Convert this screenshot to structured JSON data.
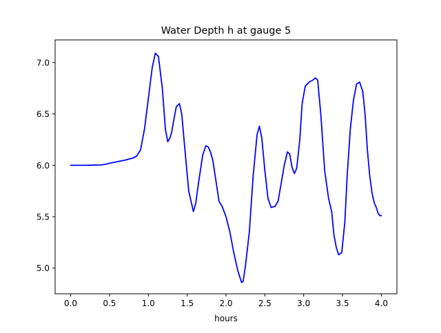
{
  "chart_data": {
    "type": "line",
    "title": "Water Depth h at gauge 5",
    "xlabel": "hours",
    "ylabel": "",
    "xlim": [
      -0.2,
      4.2
    ],
    "ylim": [
      4.75,
      7.22
    ],
    "grid": false,
    "legend": "none",
    "x_ticks": [
      0.0,
      0.5,
      1.0,
      1.5,
      2.0,
      2.5,
      3.0,
      3.5,
      4.0
    ],
    "x_tick_labels": [
      "0.0",
      "0.5",
      "1.0",
      "1.5",
      "2.0",
      "2.5",
      "3.0",
      "3.5",
      "4.0"
    ],
    "y_ticks": [
      5.0,
      5.5,
      6.0,
      6.5,
      7.0
    ],
    "y_tick_labels": [
      "5.0",
      "5.5",
      "6.0",
      "6.5",
      "7.0"
    ],
    "series": [
      {
        "color": "#0000ff",
        "x": [
          0.0,
          0.2,
          0.4,
          0.45,
          0.5,
          0.6,
          0.7,
          0.8,
          0.85,
          0.9,
          0.95,
          1.0,
          1.05,
          1.09,
          1.13,
          1.18,
          1.22,
          1.25,
          1.28,
          1.3,
          1.33,
          1.36,
          1.4,
          1.43,
          1.47,
          1.52,
          1.58,
          1.61,
          1.65,
          1.7,
          1.74,
          1.77,
          1.8,
          1.83,
          1.87,
          1.91,
          1.95,
          2.0,
          2.05,
          2.1,
          2.15,
          2.2,
          2.22,
          2.25,
          2.3,
          2.35,
          2.4,
          2.43,
          2.46,
          2.5,
          2.54,
          2.58,
          2.63,
          2.67,
          2.7,
          2.75,
          2.79,
          2.82,
          2.85,
          2.88,
          2.91,
          2.95,
          2.98,
          3.02,
          3.07,
          3.12,
          3.15,
          3.18,
          3.22,
          3.27,
          3.32,
          3.36,
          3.39,
          3.42,
          3.45,
          3.49,
          3.53,
          3.56,
          3.6,
          3.64,
          3.68,
          3.72,
          3.76,
          3.79,
          3.82,
          3.85,
          3.88,
          3.91,
          3.93,
          3.96,
          3.98,
          4.0
        ],
        "y": [
          6.0,
          6.0,
          6.004,
          6.01,
          6.02,
          6.035,
          6.05,
          6.07,
          6.09,
          6.15,
          6.35,
          6.65,
          6.95,
          7.09,
          7.06,
          6.75,
          6.35,
          6.23,
          6.27,
          6.32,
          6.45,
          6.57,
          6.6,
          6.5,
          6.16,
          5.75,
          5.55,
          5.63,
          5.85,
          6.1,
          6.19,
          6.18,
          6.13,
          6.05,
          5.85,
          5.65,
          5.6,
          5.5,
          5.35,
          5.15,
          4.98,
          4.86,
          4.87,
          5.02,
          5.35,
          5.9,
          6.3,
          6.38,
          6.27,
          5.95,
          5.68,
          5.59,
          5.6,
          5.65,
          5.78,
          6.0,
          6.13,
          6.11,
          5.98,
          5.92,
          5.97,
          6.25,
          6.6,
          6.77,
          6.81,
          6.83,
          6.85,
          6.83,
          6.5,
          5.95,
          5.68,
          5.55,
          5.32,
          5.2,
          5.13,
          5.15,
          5.45,
          5.9,
          6.35,
          6.63,
          6.79,
          6.81,
          6.72,
          6.5,
          6.15,
          5.9,
          5.73,
          5.63,
          5.6,
          5.53,
          5.51,
          5.51
        ]
      }
    ]
  }
}
